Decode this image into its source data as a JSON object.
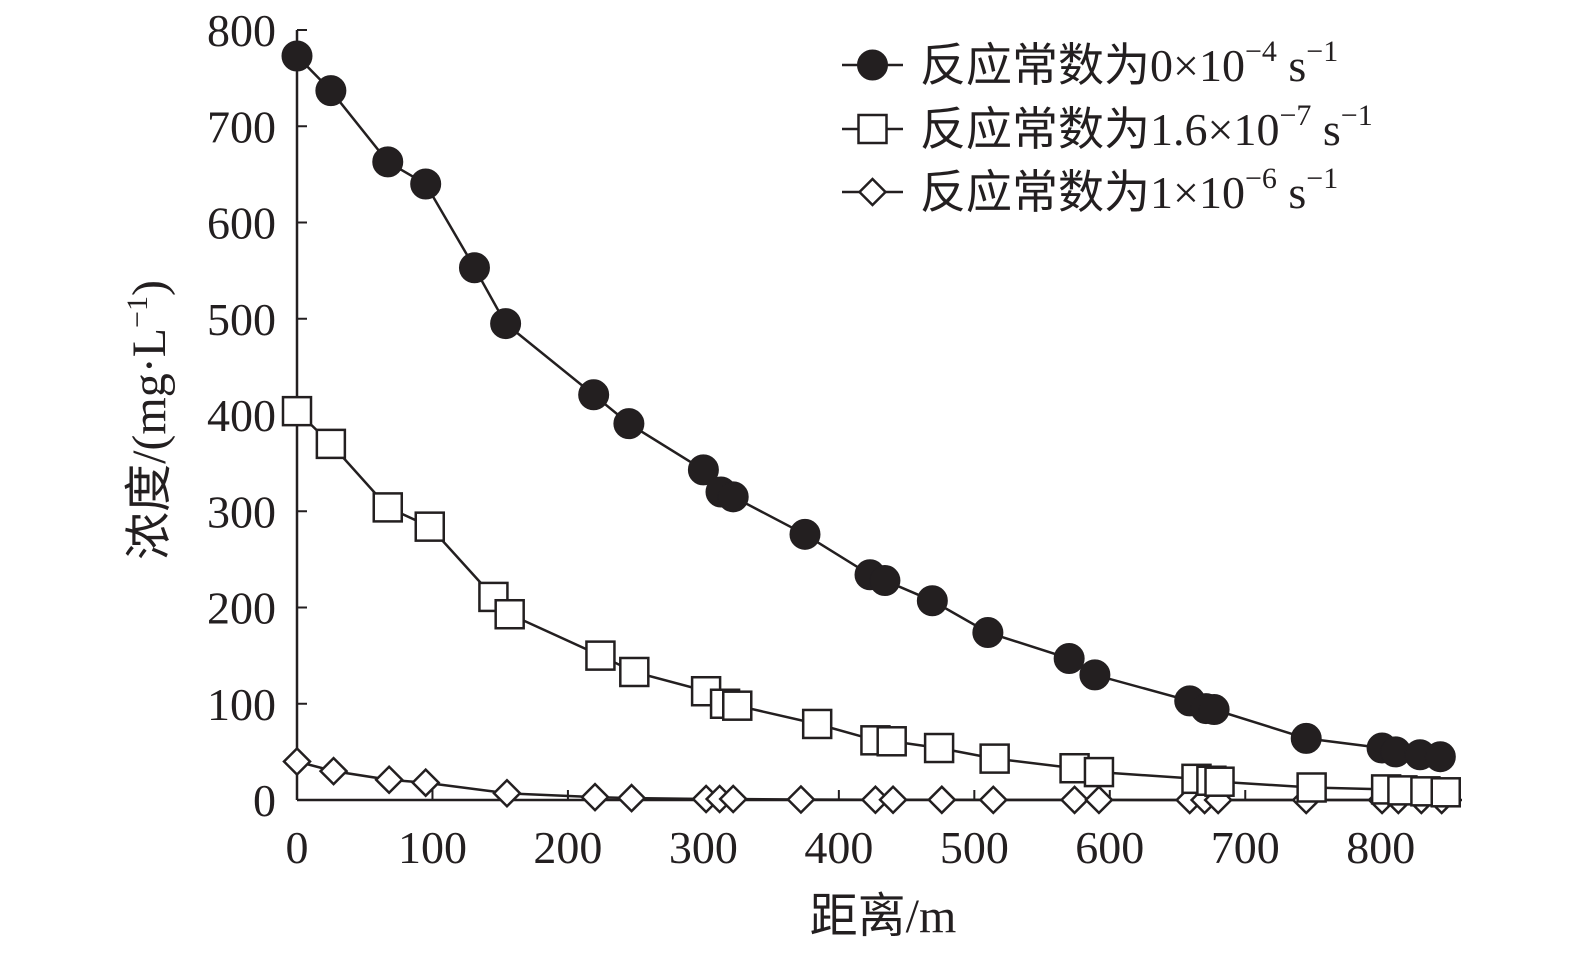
{
  "chart_data": {
    "type": "line",
    "xlabel": "距离/m",
    "ylabel": "浓度/(mg·L−1)",
    "ylabel_parts": {
      "main": "浓度/(mg·L",
      "sup": "−1",
      "close": ")"
    },
    "xlim": [
      0,
      860
    ],
    "ylim": [
      0,
      800
    ],
    "x_ticks": [
      0,
      100,
      200,
      300,
      400,
      500,
      600,
      700,
      800
    ],
    "y_ticks": [
      0,
      100,
      200,
      300,
      400,
      500,
      600,
      700,
      800
    ],
    "grid": false,
    "legend_position": "top-right",
    "colors": {
      "ink": "#231f20",
      "background": "#ffffff"
    },
    "series": [
      {
        "name": "反应常数为0×10−4 s−1",
        "label_parts": {
          "main": "反应常数为0×10",
          "sup1": "−4",
          "mid": " s",
          "sup2": "−1"
        },
        "marker": "filled-circle",
        "points": [
          [
            0,
            773
          ],
          [
            25,
            737
          ],
          [
            67,
            663
          ],
          [
            95,
            640
          ],
          [
            131,
            553
          ],
          [
            154,
            495
          ],
          [
            219,
            421
          ],
          [
            245,
            391
          ],
          [
            300,
            343
          ],
          [
            313,
            320
          ],
          [
            322,
            315
          ],
          [
            375,
            276
          ],
          [
            423,
            234
          ],
          [
            434,
            228
          ],
          [
            469,
            207
          ],
          [
            510,
            174
          ],
          [
            570,
            147
          ],
          [
            589,
            130
          ],
          [
            659,
            103
          ],
          [
            671,
            95
          ],
          [
            677,
            94
          ],
          [
            745,
            64
          ],
          [
            801,
            54
          ],
          [
            811,
            50
          ],
          [
            829,
            47
          ],
          [
            844,
            45
          ]
        ]
      },
      {
        "name": "反应常数为1.6×10−7 s−1",
        "label_parts": {
          "main": "反应常数为1.6×10",
          "sup1": "−7",
          "mid": " s",
          "sup2": "−1"
        },
        "marker": "open-square",
        "points": [
          [
            0,
            404
          ],
          [
            25,
            370
          ],
          [
            67,
            304
          ],
          [
            98,
            284
          ],
          [
            145,
            211
          ],
          [
            157,
            193
          ],
          [
            224,
            150
          ],
          [
            249,
            133
          ],
          [
            302,
            113
          ],
          [
            316,
            100
          ],
          [
            325,
            98
          ],
          [
            384,
            79
          ],
          [
            427,
            62
          ],
          [
            439,
            61
          ],
          [
            474,
            54
          ],
          [
            515,
            43
          ],
          [
            574,
            33
          ],
          [
            592,
            29
          ],
          [
            664,
            22
          ],
          [
            675,
            20
          ],
          [
            681,
            19
          ],
          [
            749,
            13
          ],
          [
            804,
            11
          ],
          [
            816,
            10
          ],
          [
            833,
            9
          ],
          [
            848,
            8
          ]
        ]
      },
      {
        "name": "反应常数为1×10−6 s−1",
        "label_parts": {
          "main": "反应常数为1×10",
          "sup1": "−6",
          "mid": " s",
          "sup2": "−1"
        },
        "marker": "open-diamond",
        "points": [
          [
            0,
            40
          ],
          [
            27,
            30
          ],
          [
            68,
            21
          ],
          [
            95,
            18
          ],
          [
            155,
            7
          ],
          [
            220,
            3
          ],
          [
            247,
            2
          ],
          [
            302,
            1
          ],
          [
            312,
            1
          ],
          [
            322,
            1
          ],
          [
            372,
            0.5
          ],
          [
            427,
            0.3
          ],
          [
            440,
            0.3
          ],
          [
            476,
            0.2
          ],
          [
            514,
            0.1
          ],
          [
            574,
            0.1
          ],
          [
            592,
            0.1
          ],
          [
            659,
            0
          ],
          [
            670,
            0
          ],
          [
            680,
            0
          ],
          [
            745,
            0
          ],
          [
            801,
            0
          ],
          [
            813,
            0
          ],
          [
            830,
            0
          ],
          [
            845,
            0
          ]
        ]
      }
    ]
  }
}
